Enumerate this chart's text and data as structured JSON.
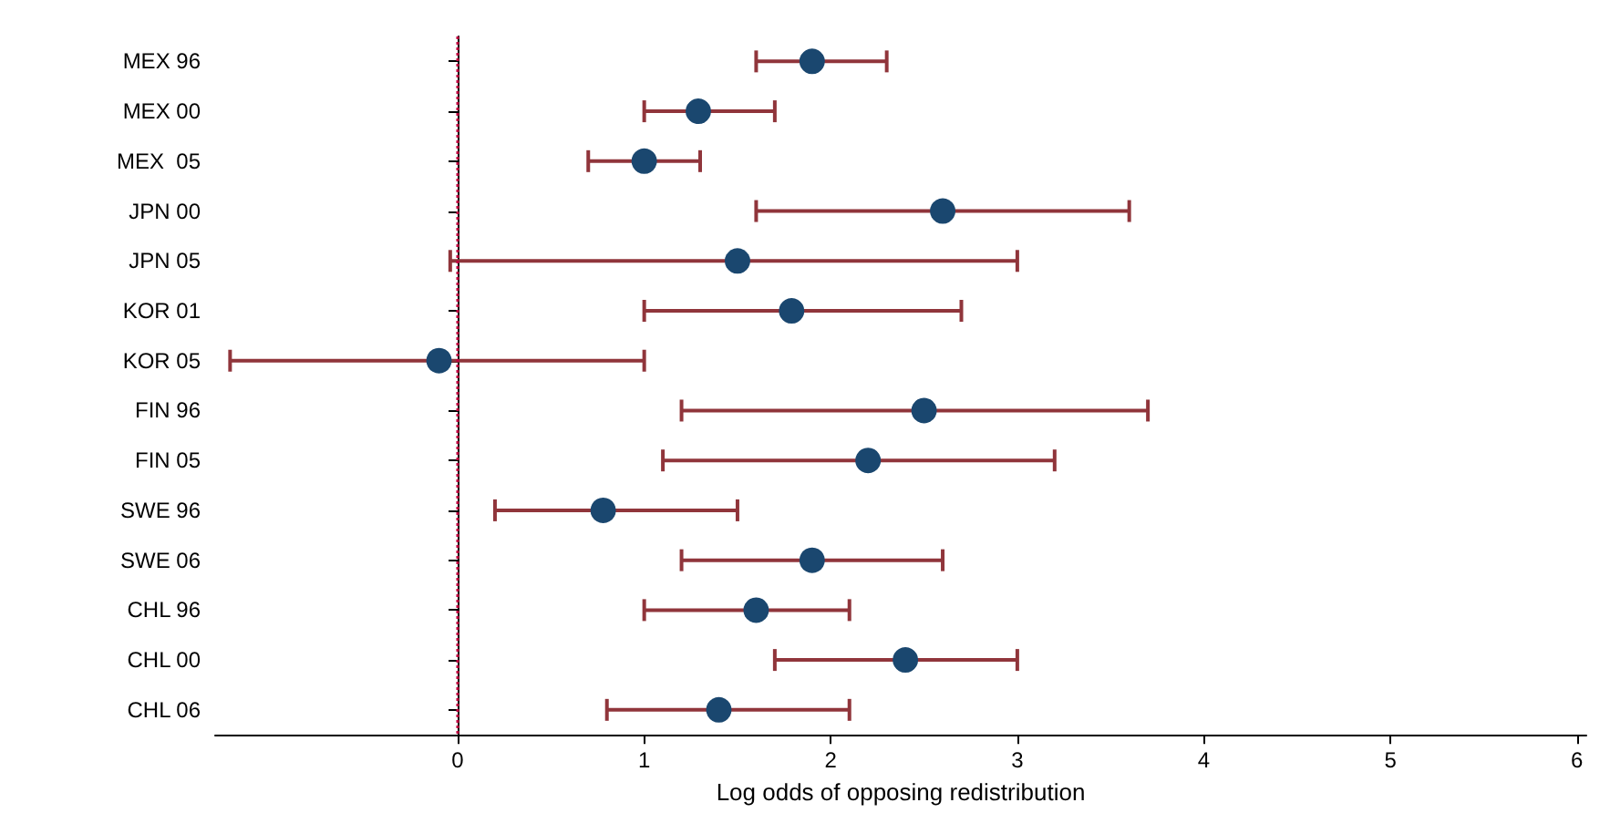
{
  "chart_data": {
    "type": "scatter",
    "orientation": "horizontal",
    "xlabel": "Log odds of opposing redistribution",
    "categories": [
      "MEX 96",
      "MEX 00",
      "MEX  05",
      "JPN 00",
      "JPN 05",
      "KOR 01",
      "KOR 05",
      "FIN 96",
      "FIN 05",
      "SWE 96",
      "SWE 06",
      "CHL 96",
      "CHL 00",
      "CHL 06"
    ],
    "series": [
      {
        "color": "#1a476f",
        "values": [
          1.9,
          1.29,
          1.0,
          2.6,
          1.5,
          1.79,
          -0.1,
          2.5,
          2.2,
          0.78,
          1.9,
          1.6,
          2.4,
          1.4
        ],
        "errors": [
          [
            1.6,
            2.3
          ],
          [
            1.0,
            1.7
          ],
          [
            0.7,
            1.3
          ],
          [
            1.6,
            3.6
          ],
          [
            -0.04,
            3.0
          ],
          [
            1.0,
            2.7
          ],
          [
            -1.22,
            1.0
          ],
          [
            1.2,
            3.7
          ],
          [
            1.1,
            3.2
          ],
          [
            0.2,
            1.5
          ],
          [
            1.2,
            2.6
          ],
          [
            1.0,
            2.1
          ],
          [
            1.7,
            3.0
          ],
          [
            0.8,
            2.1
          ]
        ]
      }
    ],
    "xlim": [
      -1.3,
      6.05
    ],
    "xticks": [
      0,
      1,
      2,
      3,
      4,
      5,
      6
    ],
    "marker": "circle",
    "grid": false,
    "ref_lines": [
      {
        "axis": "x",
        "value": 0,
        "color": "#c00040",
        "line_style": "dotted"
      }
    ]
  }
}
